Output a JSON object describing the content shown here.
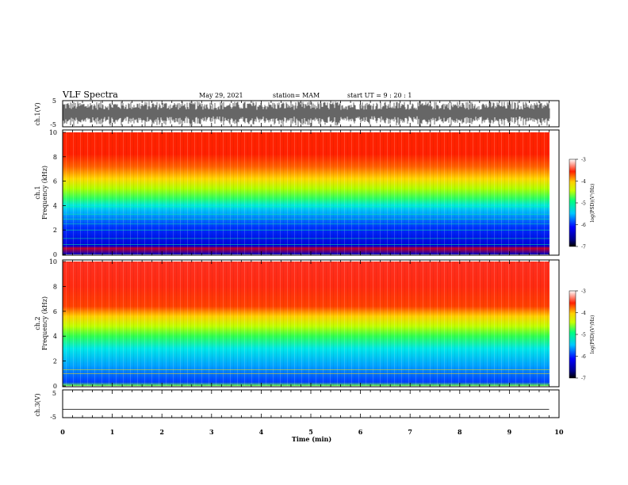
{
  "header": {
    "title": "VLF Spectra",
    "date": "May 29, 2021",
    "station": "station= MAM",
    "start": "start  UT =   9 : 20 : 1"
  },
  "chart_data": [
    {
      "type": "line",
      "panel": "ch1_waveform",
      "ylabel": "ch.1(V)",
      "ylim": [
        -5,
        5
      ],
      "yticks": [
        "5",
        "-5"
      ],
      "xlim": [
        0,
        10
      ],
      "note": "dense black waveform trace"
    },
    {
      "type": "heatmap",
      "panel": "ch1_spectrogram",
      "ylabel_top": "ch.1",
      "ylabel": "Frequency (kHz)",
      "ylim": [
        0,
        10
      ],
      "yticks": [
        "0",
        "2",
        "4",
        "6",
        "8",
        "10"
      ],
      "xlim": [
        0,
        10
      ],
      "colorbar": {
        "label": "log(PSD)(V²/Hz)",
        "range": [
          -7,
          -3
        ],
        "ticks": [
          "-3",
          "-4",
          "-5",
          "-6",
          "-7"
        ]
      },
      "description_levels": [
        {
          "freq_khz": [
            0,
            2.5
          ],
          "log_psd": -6.2
        },
        {
          "freq_khz": [
            2.5,
            4.5
          ],
          "log_psd": -5.5
        },
        {
          "freq_khz": [
            4.5,
            6.5
          ],
          "log_psd": -4.8
        },
        {
          "freq_khz": [
            6.5,
            10
          ],
          "log_psd": -3.6
        }
      ]
    },
    {
      "type": "heatmap",
      "panel": "ch2_spectrogram",
      "ylabel_top": "ch.2",
      "ylabel": "Frequency (kHz)",
      "ylim": [
        0,
        10
      ],
      "yticks": [
        "0",
        "2",
        "4",
        "6",
        "8",
        "10"
      ],
      "xlim": [
        0,
        10
      ],
      "colorbar": {
        "label": "log(PSD)(V²/Hz)",
        "range": [
          -7,
          -3
        ],
        "ticks": [
          "-3",
          "-4",
          "-5",
          "-6",
          "-7"
        ]
      },
      "description_levels": [
        {
          "freq_khz": [
            0,
            3.5
          ],
          "log_psd": -5.8
        },
        {
          "freq_khz": [
            3.5,
            5.5
          ],
          "log_psd": -5.0
        },
        {
          "freq_khz": [
            5.5,
            10
          ],
          "log_psd": -3.4
        }
      ]
    },
    {
      "type": "line",
      "panel": "ch3_waveform",
      "ylabel": "ch.3(V)",
      "ylim": [
        -5,
        5
      ],
      "yticks": [
        "5",
        "-5"
      ],
      "x": [
        0,
        9.8
      ],
      "y": [
        -2,
        -2
      ],
      "xlim": [
        0,
        10
      ],
      "xlabel": "Time (min)",
      "xticks": [
        "0",
        "1",
        "2",
        "3",
        "4",
        "5",
        "6",
        "7",
        "8",
        "9",
        "10"
      ]
    }
  ]
}
